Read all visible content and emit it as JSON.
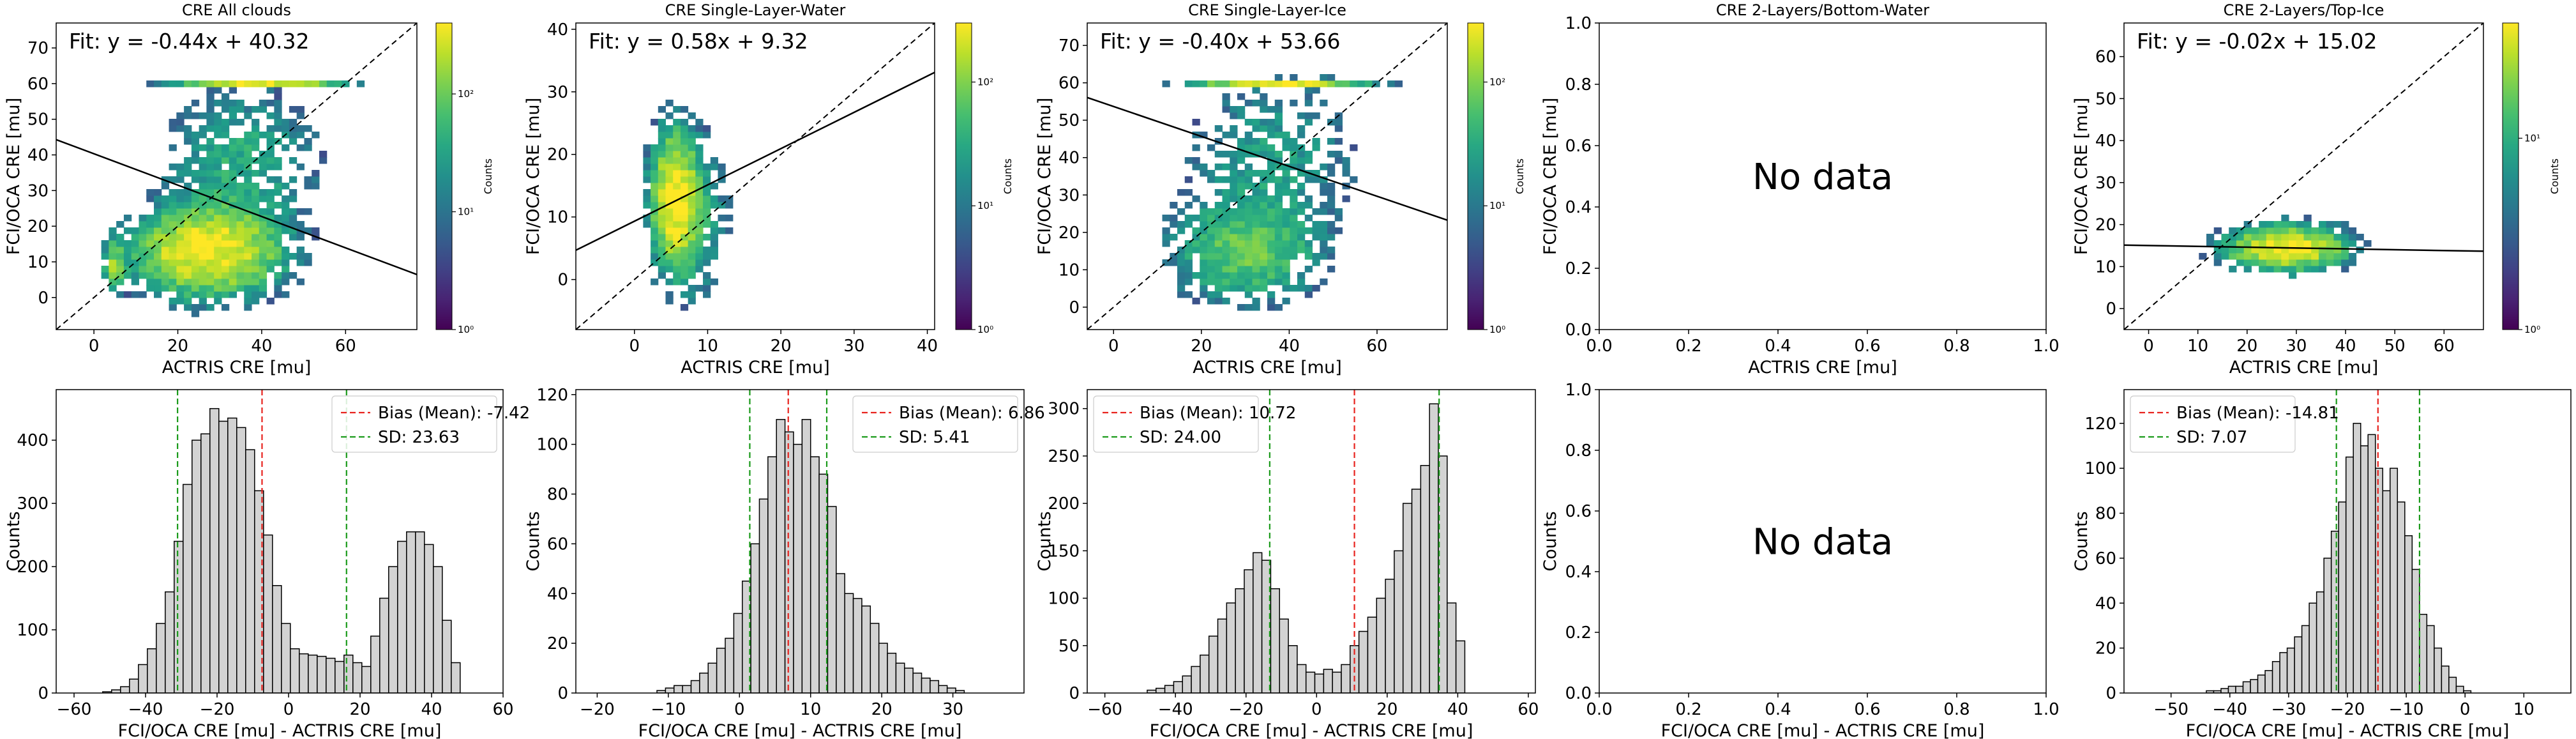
{
  "chart_data": [
    {
      "type": "heatmap",
      "id": "all-scatter",
      "title": "CRE All clouds",
      "xlabel": "ACTRIS CRE [mu]",
      "ylabel": "FCI/OCA CRE [mu]",
      "xlim": [
        -9,
        77
      ],
      "ylim": [
        -9,
        77
      ],
      "xticks": [
        0,
        20,
        40,
        60
      ],
      "yticks": [
        0,
        10,
        20,
        30,
        40,
        50,
        60,
        70
      ],
      "fit": {
        "slope": -0.44,
        "intercept": 40.32,
        "label": "Fit: y = -0.44x + 40.32"
      },
      "one_to_one_line": true,
      "colorbar": {
        "label": "Counts",
        "scale": "log",
        "ticks": [
          "10⁰",
          "10¹",
          "10²"
        ],
        "range": [
          1,
          400
        ]
      },
      "density_clusters": [
        {
          "cx": 27,
          "cy": 13,
          "sx": 10,
          "sy": 7,
          "peak": 1.0
        },
        {
          "cx": 5,
          "cy": 9,
          "sx": 1.5,
          "sy": 4,
          "peak": 0.45
        },
        {
          "cx": 35,
          "cy": 38,
          "sx": 11,
          "sy": 12,
          "peak": 0.2
        },
        {
          "cx": 40,
          "cy": 60,
          "sx": 11,
          "sy": 0.6,
          "peak": 0.85
        }
      ]
    },
    {
      "type": "heatmap",
      "id": "water-scatter",
      "title": "CRE Single-Layer-Water",
      "xlabel": "ACTRIS CRE [mu]",
      "ylabel": "FCI/OCA CRE [mu]",
      "xlim": [
        -8,
        41
      ],
      "ylim": [
        -8,
        41
      ],
      "xticks": [
        0,
        10,
        20,
        30,
        40
      ],
      "yticks": [
        0,
        10,
        20,
        30,
        40
      ],
      "fit": {
        "slope": 0.58,
        "intercept": 9.32,
        "label": "Fit: y = 0.58x + 9.32"
      },
      "one_to_one_line": true,
      "colorbar": {
        "label": "Counts",
        "scale": "log",
        "ticks": [
          "10⁰",
          "10¹",
          "10²"
        ],
        "range": [
          1,
          300
        ]
      },
      "density_clusters": [
        {
          "cx": 5.5,
          "cy": 13,
          "sx": 1.8,
          "sy": 6,
          "peak": 1.0
        },
        {
          "cx": 8,
          "cy": 10,
          "sx": 3,
          "sy": 8,
          "peak": 0.2
        }
      ]
    },
    {
      "type": "heatmap",
      "id": "ice-scatter",
      "title": "CRE Single-Layer-Ice",
      "xlabel": "ACTRIS CRE [mu]",
      "ylabel": "FCI/OCA CRE [mu]",
      "xlim": [
        -6,
        76
      ],
      "ylim": [
        -6,
        76
      ],
      "xticks": [
        0,
        20,
        40,
        60
      ],
      "yticks": [
        0,
        10,
        20,
        30,
        40,
        50,
        60,
        70
      ],
      "fit": {
        "slope": -0.4,
        "intercept": 53.66,
        "label": "Fit: y = -0.40x + 53.66"
      },
      "one_to_one_line": true,
      "colorbar": {
        "label": "Counts",
        "scale": "log",
        "ticks": [
          "10⁰",
          "10¹",
          "10²"
        ],
        "range": [
          1,
          300
        ]
      },
      "density_clusters": [
        {
          "cx": 30,
          "cy": 15,
          "sx": 10,
          "sy": 8,
          "peak": 0.35
        },
        {
          "cx": 36,
          "cy": 40,
          "sx": 12,
          "sy": 13,
          "peak": 0.15
        },
        {
          "cx": 38,
          "cy": 60,
          "sx": 11,
          "sy": 0.6,
          "peak": 0.9
        }
      ]
    },
    {
      "type": "heatmap",
      "id": "bottom-water-scatter",
      "title": "CRE 2-Layers/Bottom-Water",
      "xlabel": "ACTRIS CRE [mu]",
      "ylabel": "FCI/OCA CRE [mu]",
      "xlim": [
        0,
        1
      ],
      "ylim": [
        0,
        1
      ],
      "xticks": [
        "0.0",
        "0.2",
        "0.4",
        "0.6",
        "0.8",
        "1.0"
      ],
      "yticks": [
        "0.0",
        "0.2",
        "0.4",
        "0.6",
        "0.8",
        "1.0"
      ],
      "annotation": "No data"
    },
    {
      "type": "heatmap",
      "id": "top-ice-scatter",
      "title": "CRE 2-Layers/Top-Ice",
      "xlabel": "ACTRIS CRE [mu]",
      "ylabel": "FCI/OCA CRE [mu]",
      "xlim": [
        -5,
        68
      ],
      "ylim": [
        -5,
        68
      ],
      "xticks": [
        0,
        10,
        20,
        30,
        40,
        50,
        60
      ],
      "yticks": [
        0,
        10,
        20,
        30,
        40,
        50,
        60
      ],
      "fit": {
        "slope": -0.02,
        "intercept": 15.02,
        "label": "Fit: y = -0.02x + 15.02"
      },
      "one_to_one_line": true,
      "colorbar": {
        "label": "Counts",
        "scale": "log",
        "ticks": [
          "10⁰",
          "10¹"
        ],
        "range": [
          1,
          40
        ]
      },
      "density_clusters": [
        {
          "cx": 28,
          "cy": 14.5,
          "sx": 7,
          "sy": 3,
          "peak": 1.0
        }
      ]
    },
    {
      "type": "bar",
      "id": "all-hist",
      "xlabel": "FCI/OCA CRE [mu] - ACTRIS CRE [mu]",
      "ylabel": "Counts",
      "xlim": [
        -65,
        60
      ],
      "ylim": [
        0,
        480
      ],
      "xticks": [
        -60,
        -40,
        -20,
        0,
        20,
        40,
        60
      ],
      "yticks": [
        0,
        100,
        200,
        300,
        400
      ],
      "bin_start": -52,
      "bin_width": 2.5,
      "values": [
        2,
        5,
        10,
        22,
        45,
        70,
        110,
        160,
        240,
        330,
        400,
        410,
        450,
        430,
        435,
        420,
        385,
        320,
        250,
        170,
        110,
        70,
        62,
        60,
        58,
        55,
        50,
        60,
        48,
        42,
        90,
        150,
        200,
        240,
        255,
        255,
        235,
        200,
        115,
        48
      ],
      "mean": -7.42,
      "sd": 23.63,
      "legend": {
        "bias": "Bias (Mean): -7.42",
        "sd": "SD: 23.63",
        "position": "top-right"
      }
    },
    {
      "type": "bar",
      "id": "water-hist",
      "xlabel": "FCI/OCA CRE [mu] - ACTRIS CRE [mu]",
      "ylabel": "Counts",
      "xlim": [
        -23,
        40
      ],
      "ylim": [
        0,
        122
      ],
      "xticks": [
        -20,
        -10,
        0,
        10,
        20,
        30
      ],
      "yticks": [
        0,
        20,
        40,
        60,
        80,
        100,
        120
      ],
      "bin_start": -14,
      "bin_width": 1.2,
      "values": [
        0,
        0,
        1,
        2,
        3,
        3,
        5,
        8,
        12,
        18,
        22,
        32,
        45,
        60,
        78,
        95,
        110,
        105,
        100,
        110,
        95,
        88,
        75,
        48,
        40,
        38,
        35,
        28,
        20,
        16,
        12,
        10,
        8,
        6,
        5,
        3,
        2,
        1
      ],
      "mean": 6.86,
      "sd": 5.41,
      "legend": {
        "bias": "Bias (Mean): 6.86",
        "sd": "SD: 5.41",
        "position": "top-right"
      }
    },
    {
      "type": "bar",
      "id": "ice-hist",
      "xlabel": "FCI/OCA CRE [mu] - ACTRIS CRE [mu]",
      "ylabel": "Counts",
      "xlim": [
        -65,
        62
      ],
      "ylim": [
        0,
        320
      ],
      "xticks": [
        -60,
        -40,
        -20,
        0,
        20,
        40,
        60
      ],
      "yticks": [
        0,
        50,
        100,
        150,
        200,
        250,
        300
      ],
      "bin_start": -48,
      "bin_width": 2.5,
      "values": [
        3,
        5,
        8,
        12,
        18,
        28,
        40,
        60,
        78,
        95,
        110,
        130,
        148,
        140,
        110,
        78,
        50,
        30,
        22,
        20,
        25,
        22,
        30,
        50,
        65,
        80,
        100,
        120,
        150,
        200,
        215,
        240,
        305,
        250,
        95,
        55
      ],
      "mean": 10.72,
      "sd": 24.0,
      "legend": {
        "bias": "Bias (Mean): 10.72",
        "sd": "SD: 24.00",
        "position": "top-left"
      }
    },
    {
      "type": "bar",
      "id": "bottom-water-hist",
      "xlabel": "FCI/OCA CRE [mu] - ACTRIS CRE [mu]",
      "ylabel": "Counts",
      "xlim": [
        0,
        1
      ],
      "ylim": [
        0,
        1
      ],
      "xticks": [
        "0.0",
        "0.2",
        "0.4",
        "0.6",
        "0.8",
        "1.0"
      ],
      "yticks": [
        "0.0",
        "0.2",
        "0.4",
        "0.6",
        "0.8",
        "1.0"
      ],
      "annotation": "No data"
    },
    {
      "type": "bar",
      "id": "top-ice-hist",
      "xlabel": "FCI/OCA CRE [mu] - ACTRIS CRE [mu]",
      "ylabel": "Counts",
      "xlim": [
        -58,
        18
      ],
      "ylim": [
        0,
        135
      ],
      "xticks": [
        -50,
        -40,
        -30,
        -20,
        -10,
        0,
        10
      ],
      "yticks": [
        0,
        20,
        40,
        60,
        80,
        100,
        120
      ],
      "bin_start": -44,
      "bin_width": 1.25,
      "values": [
        1,
        1,
        2,
        3,
        3,
        5,
        6,
        8,
        10,
        14,
        18,
        20,
        25,
        30,
        40,
        45,
        60,
        72,
        85,
        105,
        120,
        110,
        115,
        100,
        90,
        100,
        85,
        70,
        55,
        35,
        30,
        20,
        12,
        7,
        3,
        1
      ],
      "mean": -14.81,
      "sd": 7.07,
      "legend": {
        "bias": "Bias (Mean): -14.81",
        "sd": "SD: 7.07",
        "position": "top-left"
      }
    }
  ]
}
